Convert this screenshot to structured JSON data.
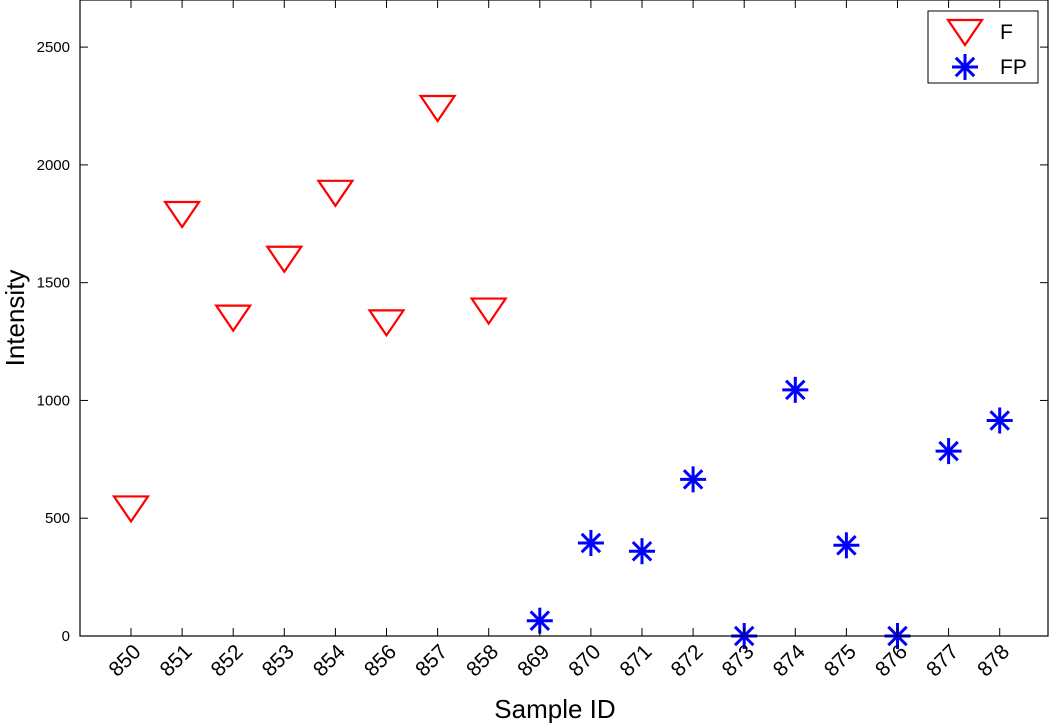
{
  "chart_data": {
    "type": "scatter",
    "title": "",
    "xlabel": "Sample ID",
    "ylabel": "Intensity",
    "categories": [
      "850",
      "851",
      "852",
      "853",
      "854",
      "856",
      "857",
      "858",
      "869",
      "870",
      "871",
      "872",
      "873",
      "874",
      "875",
      "876",
      "877",
      "878"
    ],
    "ylim": [
      0,
      2700
    ],
    "yticks": [
      0,
      500,
      1000,
      1500,
      2000,
      2500
    ],
    "grid": false,
    "legend_position": "top-right",
    "series": [
      {
        "name": "F",
        "marker": "triangle-down",
        "color": "#ff0000",
        "points": [
          {
            "x": "850",
            "y": 550
          },
          {
            "x": "851",
            "y": 1800
          },
          {
            "x": "852",
            "y": 1360
          },
          {
            "x": "853",
            "y": 1610
          },
          {
            "x": "854",
            "y": 1890
          },
          {
            "x": "856",
            "y": 1340
          },
          {
            "x": "857",
            "y": 2250
          },
          {
            "x": "858",
            "y": 1390
          }
        ]
      },
      {
        "name": "FP",
        "marker": "asterisk",
        "color": "#0000ff",
        "points": [
          {
            "x": "869",
            "y": 65
          },
          {
            "x": "870",
            "y": 395
          },
          {
            "x": "871",
            "y": 360
          },
          {
            "x": "872",
            "y": 665
          },
          {
            "x": "873",
            "y": 0
          },
          {
            "x": "874",
            "y": 1045
          },
          {
            "x": "875",
            "y": 385
          },
          {
            "x": "876",
            "y": 0
          },
          {
            "x": "877",
            "y": 785
          },
          {
            "x": "878",
            "y": 915
          }
        ]
      }
    ]
  }
}
